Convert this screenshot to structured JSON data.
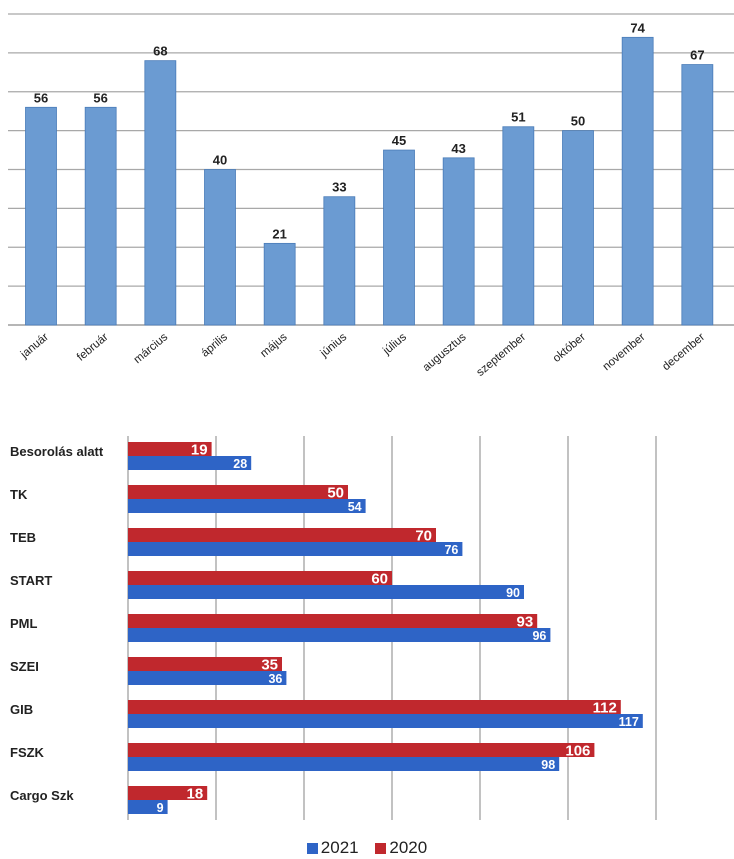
{
  "chart_data": [
    {
      "type": "bar",
      "categories": [
        "január",
        "február",
        "március",
        "április",
        "május",
        "június",
        "július",
        "augusztus",
        "szeptember",
        "október",
        "november",
        "december"
      ],
      "values": [
        56,
        56,
        68,
        40,
        21,
        33,
        45,
        43,
        51,
        50,
        74,
        67
      ],
      "ylim": [
        0,
        80
      ],
      "grid": true,
      "bar_color": "#6b9bd2"
    },
    {
      "type": "bar",
      "orientation": "horizontal",
      "categories": [
        "Besorolás alatt",
        "TK",
        "TEB",
        "START",
        "PML",
        "SZEI",
        "GIB",
        "FSZK",
        "Cargo Szk"
      ],
      "series": [
        {
          "name": "2020",
          "values": [
            19,
            50,
            70,
            60,
            93,
            35,
            112,
            106,
            18
          ],
          "color": "#c0282d"
        },
        {
          "name": "2021",
          "values": [
            28,
            54,
            76,
            90,
            96,
            36,
            117,
            98,
            9
          ],
          "color": "#2e64c6"
        }
      ],
      "xlim": [
        0,
        120
      ],
      "grid": true,
      "legend": {
        "position": "bottom",
        "entries": [
          "2021",
          "2020"
        ]
      }
    }
  ]
}
